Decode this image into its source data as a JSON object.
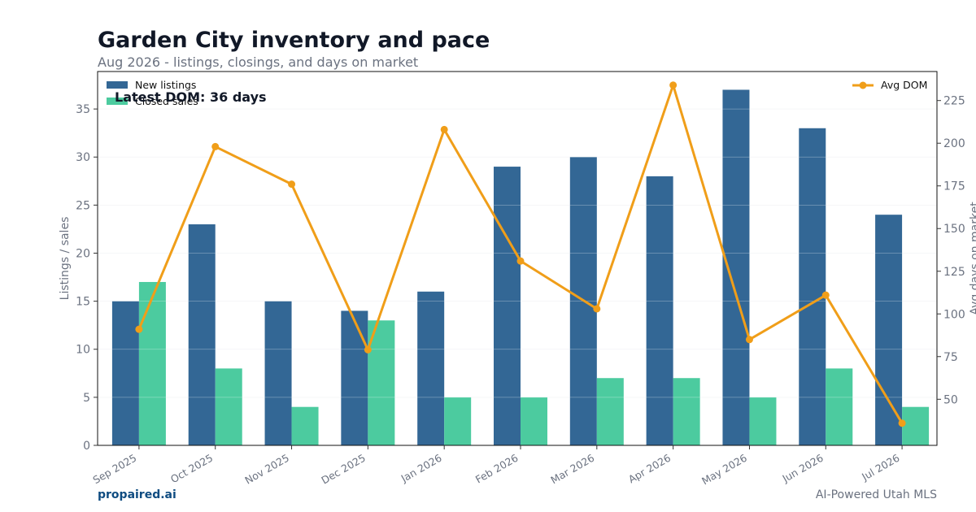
{
  "header": {
    "title": "Garden City inventory and pace",
    "subtitle": "Aug 2026 - listings, closings, and days on market"
  },
  "footer": {
    "brand": "propaired.ai",
    "tagline": "AI-Powered Utah MLS"
  },
  "annotation": "Latest DOM: 36 days",
  "colors": {
    "new_listings": "#336795",
    "closed_sales": "#4ccb9f",
    "avg_dom": "#f09e19",
    "axis_text": "#6b7280",
    "title_text": "#111827",
    "brand": "#0f4c81"
  },
  "chart_data": {
    "type": "bar",
    "categories": [
      "Sep 2025",
      "Oct 2025",
      "Nov 2025",
      "Dec 2025",
      "Jan 2026",
      "Feb 2026",
      "Mar 2026",
      "Apr 2026",
      "May 2026",
      "Jun 2026",
      "Jul 2026"
    ],
    "series": [
      {
        "name": "New listings",
        "type": "bar",
        "axis": "left",
        "values": [
          15,
          23,
          15,
          14,
          16,
          29,
          30,
          28,
          37,
          33,
          24
        ]
      },
      {
        "name": "Closed sales",
        "type": "bar",
        "axis": "left",
        "values": [
          17,
          8,
          4,
          13,
          5,
          5,
          7,
          7,
          5,
          8,
          4
        ]
      },
      {
        "name": "Avg DOM",
        "type": "line",
        "axis": "right",
        "values": [
          91,
          198,
          176,
          79,
          208,
          131,
          103,
          234,
          85,
          111,
          36
        ]
      }
    ],
    "ylabel": "Listings / sales",
    "y2label": "Avg days on market",
    "ylim": [
      0,
      38.9
    ],
    "y2lim": [
      23,
      242
    ],
    "yticks": [
      0,
      5,
      10,
      15,
      20,
      25,
      30,
      35
    ],
    "y2ticks": [
      50,
      75,
      100,
      125,
      150,
      175,
      200,
      225
    ],
    "grid": true,
    "legend_left": "top-left",
    "legend_right": "top-right"
  }
}
